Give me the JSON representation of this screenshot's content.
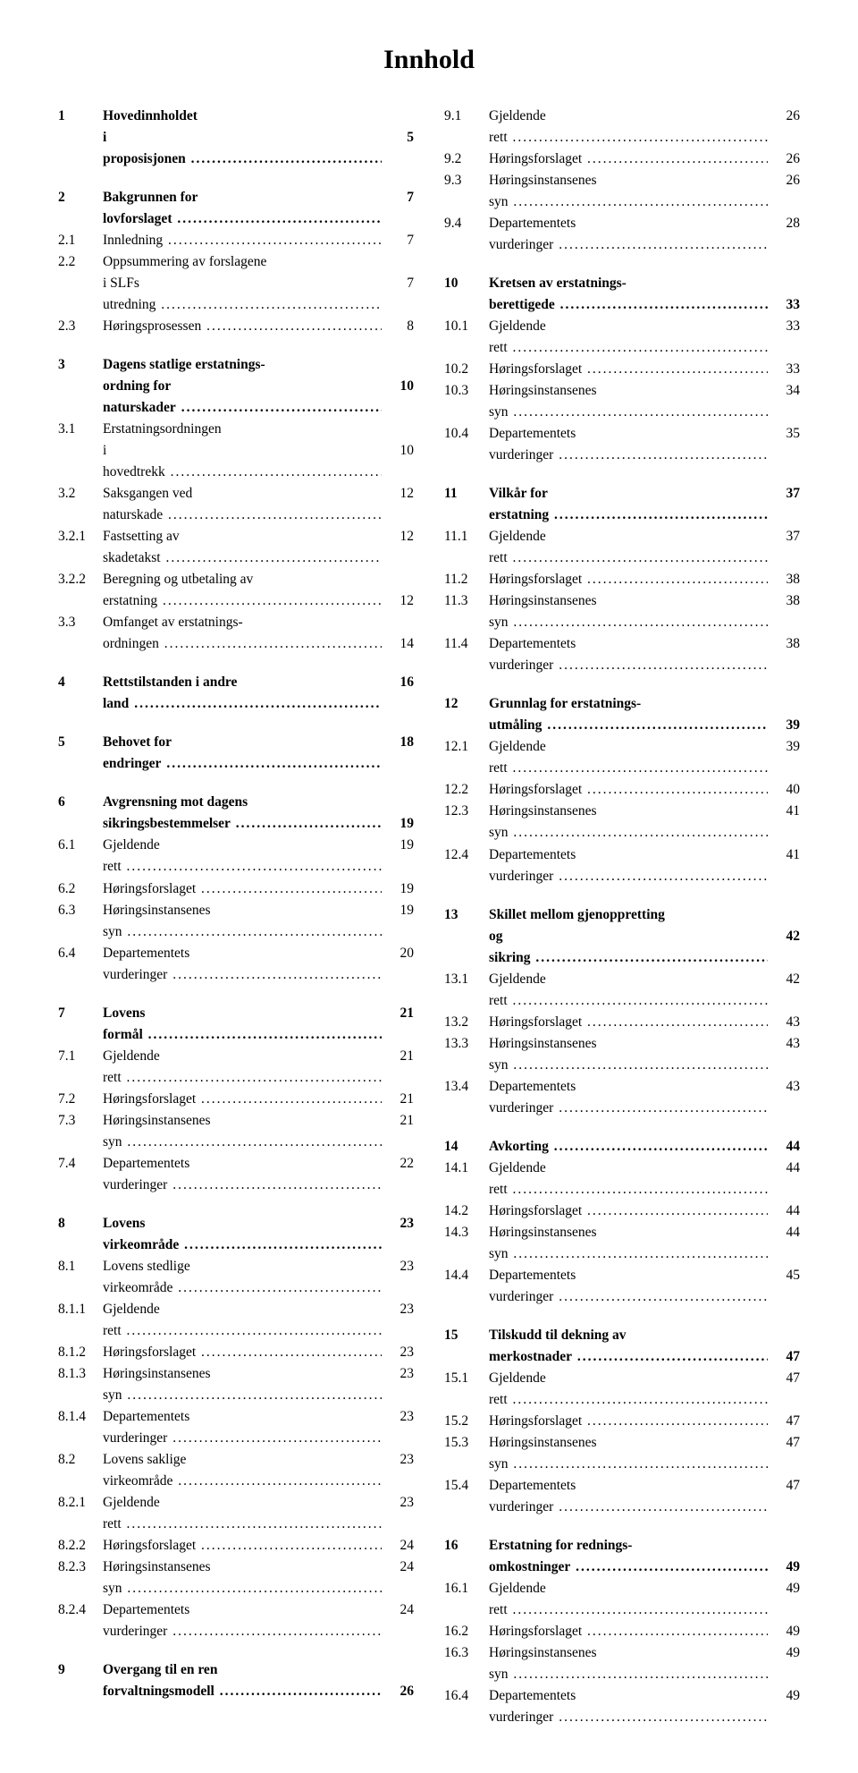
{
  "title": "Innhold",
  "left": [
    {
      "num": "1",
      "text": "Hovedinnholdet",
      "page": "",
      "bold": true,
      "nodots": true
    },
    {
      "num": "",
      "text": "i proposisjonen",
      "page": "5",
      "bold": true
    },
    {
      "spacer": true
    },
    {
      "num": "2",
      "text": "Bakgrunnen for lovforslaget",
      "page": "7",
      "bold": true
    },
    {
      "num": "2.1",
      "text": "Innledning",
      "page": "7"
    },
    {
      "num": "2.2",
      "text": "Oppsummering av forslagene",
      "page": "",
      "nodots": true
    },
    {
      "num": "",
      "text": "i SLFs utredning",
      "page": "7"
    },
    {
      "num": "2.3",
      "text": "Høringsprosessen",
      "page": "8"
    },
    {
      "spacer": true
    },
    {
      "num": "3",
      "text": "Dagens statlige erstatnings-",
      "page": "",
      "bold": true,
      "nodots": true
    },
    {
      "num": "",
      "text": "ordning for naturskader",
      "page": "10",
      "bold": true
    },
    {
      "num": "3.1",
      "text": "Erstatningsordningen",
      "page": "",
      "nodots": true
    },
    {
      "num": "",
      "text": "i hovedtrekk",
      "page": "10"
    },
    {
      "num": "3.2",
      "text": "Saksgangen ved naturskade",
      "page": "12"
    },
    {
      "num": "3.2.1",
      "text": "Fastsetting av skadetakst",
      "page": "12"
    },
    {
      "num": "3.2.2",
      "text": "Beregning og utbetaling av",
      "page": "",
      "nodots": true
    },
    {
      "num": "",
      "text": "erstatning",
      "page": "12"
    },
    {
      "num": "3.3",
      "text": "Omfanget av erstatnings-",
      "page": "",
      "nodots": true
    },
    {
      "num": "",
      "text": "ordningen",
      "page": "14"
    },
    {
      "spacer": true
    },
    {
      "num": "4",
      "text": "Rettstilstanden i andre land",
      "page": "16",
      "bold": true
    },
    {
      "spacer": true
    },
    {
      "num": "5",
      "text": "Behovet for endringer",
      "page": "18",
      "bold": true
    },
    {
      "spacer": true
    },
    {
      "num": "6",
      "text": "Avgrensning mot dagens",
      "page": "",
      "bold": true,
      "nodots": true
    },
    {
      "num": "",
      "text": "sikringsbestemmelser",
      "page": "19",
      "bold": true
    },
    {
      "num": "6.1",
      "text": "Gjeldende rett",
      "page": "19"
    },
    {
      "num": "6.2",
      "text": "Høringsforslaget",
      "page": "19"
    },
    {
      "num": "6.3",
      "text": "Høringsinstansenes syn",
      "page": "19"
    },
    {
      "num": "6.4",
      "text": "Departementets vurderinger",
      "page": "20"
    },
    {
      "spacer": true
    },
    {
      "num": "7",
      "text": "Lovens formål",
      "page": "21",
      "bold": true
    },
    {
      "num": "7.1",
      "text": "Gjeldende rett",
      "page": "21"
    },
    {
      "num": "7.2",
      "text": "Høringsforslaget",
      "page": "21"
    },
    {
      "num": "7.3",
      "text": "Høringsinstansenes syn",
      "page": "21"
    },
    {
      "num": "7.4",
      "text": "Departementets vurderinger",
      "page": "22"
    },
    {
      "spacer": true
    },
    {
      "num": "8",
      "text": "Lovens virkeområde",
      "page": "23",
      "bold": true
    },
    {
      "num": "8.1",
      "text": "Lovens stedlige virkeområde",
      "page": "23"
    },
    {
      "num": "8.1.1",
      "text": "Gjeldende rett",
      "page": "23"
    },
    {
      "num": "8.1.2",
      "text": "Høringsforslaget",
      "page": "23"
    },
    {
      "num": "8.1.3",
      "text": "Høringsinstansenes syn",
      "page": "23"
    },
    {
      "num": "8.1.4",
      "text": "Departementets vurderinger",
      "page": "23"
    },
    {
      "num": "8.2",
      "text": "Lovens saklige virkeområde",
      "page": "23"
    },
    {
      "num": "8.2.1",
      "text": "Gjeldende rett",
      "page": "23"
    },
    {
      "num": "8.2.2",
      "text": "Høringsforslaget",
      "page": "24"
    },
    {
      "num": "8.2.3",
      "text": "Høringsinstansenes syn",
      "page": "24"
    },
    {
      "num": "8.2.4",
      "text": "Departementets vurderinger",
      "page": "24"
    },
    {
      "spacer": true
    },
    {
      "num": "9",
      "text": "Overgang til en ren",
      "page": "",
      "bold": true,
      "nodots": true
    },
    {
      "num": "",
      "text": "forvaltningsmodell",
      "page": "26",
      "bold": true
    }
  ],
  "right": [
    {
      "num": "9.1",
      "text": "Gjeldende rett",
      "page": "26"
    },
    {
      "num": "9.2",
      "text": "Høringsforslaget",
      "page": "26"
    },
    {
      "num": "9.3",
      "text": "Høringsinstansenes syn",
      "page": "26"
    },
    {
      "num": "9.4",
      "text": "Departementets vurderinger",
      "page": "28"
    },
    {
      "spacer": true
    },
    {
      "num": "10",
      "text": "Kretsen av erstatnings-",
      "page": "",
      "bold": true,
      "nodots": true
    },
    {
      "num": "",
      "text": "berettigede",
      "page": "33",
      "bold": true
    },
    {
      "num": "10.1",
      "text": "Gjeldende rett",
      "page": "33"
    },
    {
      "num": "10.2",
      "text": "Høringsforslaget",
      "page": "33"
    },
    {
      "num": "10.3",
      "text": "Høringsinstansenes syn",
      "page": "34"
    },
    {
      "num": "10.4",
      "text": "Departementets vurderinger",
      "page": "35"
    },
    {
      "spacer": true
    },
    {
      "num": "11",
      "text": "Vilkår for erstatning",
      "page": "37",
      "bold": true
    },
    {
      "num": "11.1",
      "text": "Gjeldende rett",
      "page": "37"
    },
    {
      "num": "11.2",
      "text": "Høringsforslaget",
      "page": "38"
    },
    {
      "num": "11.3",
      "text": "Høringsinstansenes syn",
      "page": "38"
    },
    {
      "num": "11.4",
      "text": "Departementets vurderinger",
      "page": "38"
    },
    {
      "spacer": true
    },
    {
      "num": "12",
      "text": "Grunnlag for erstatnings-",
      "page": "",
      "bold": true,
      "nodots": true
    },
    {
      "num": "",
      "text": "utmåling",
      "page": "39",
      "bold": true
    },
    {
      "num": "12.1",
      "text": "Gjeldende rett",
      "page": "39"
    },
    {
      "num": "12.2",
      "text": "Høringsforslaget",
      "page": "40"
    },
    {
      "num": "12.3",
      "text": "Høringsinstansenes syn",
      "page": "41"
    },
    {
      "num": "12.4",
      "text": "Departementets vurderinger",
      "page": "41"
    },
    {
      "spacer": true
    },
    {
      "num": "13",
      "text": "Skillet mellom gjenoppretting",
      "page": "",
      "bold": true,
      "nodots": true
    },
    {
      "num": "",
      "text": "og sikring",
      "page": "42",
      "bold": true
    },
    {
      "num": "13.1",
      "text": "Gjeldende rett",
      "page": "42"
    },
    {
      "num": "13.2",
      "text": "Høringsforslaget",
      "page": "43"
    },
    {
      "num": "13.3",
      "text": "Høringsinstansenes syn",
      "page": "43"
    },
    {
      "num": "13.4",
      "text": "Departementets vurderinger",
      "page": "43"
    },
    {
      "spacer": true
    },
    {
      "num": "14",
      "text": "Avkorting",
      "page": "44",
      "bold": true
    },
    {
      "num": "14.1",
      "text": "Gjeldende rett",
      "page": "44"
    },
    {
      "num": "14.2",
      "text": "Høringsforslaget",
      "page": "44"
    },
    {
      "num": "14.3",
      "text": "Høringsinstansenes syn",
      "page": "44"
    },
    {
      "num": "14.4",
      "text": "Departementets vurderinger",
      "page": "45"
    },
    {
      "spacer": true
    },
    {
      "num": "15",
      "text": "Tilskudd til dekning av",
      "page": "",
      "bold": true,
      "nodots": true
    },
    {
      "num": "",
      "text": "merkostnader",
      "page": "47",
      "bold": true
    },
    {
      "num": "15.1",
      "text": "Gjeldende rett",
      "page": "47"
    },
    {
      "num": "15.2",
      "text": "Høringsforslaget",
      "page": "47"
    },
    {
      "num": "15.3",
      "text": "Høringsinstansenes syn",
      "page": "47"
    },
    {
      "num": "15.4",
      "text": "Departementets vurderinger",
      "page": "47"
    },
    {
      "spacer": true
    },
    {
      "num": "16",
      "text": "Erstatning for rednings-",
      "page": "",
      "bold": true,
      "nodots": true
    },
    {
      "num": "",
      "text": "omkostninger",
      "page": "49",
      "bold": true
    },
    {
      "num": "16.1",
      "text": "Gjeldende rett",
      "page": "49"
    },
    {
      "num": "16.2",
      "text": "Høringsforslaget",
      "page": "49"
    },
    {
      "num": "16.3",
      "text": "Høringsinstansenes syn",
      "page": "49"
    },
    {
      "num": "16.4",
      "text": "Departementets vurderinger",
      "page": "49"
    }
  ]
}
